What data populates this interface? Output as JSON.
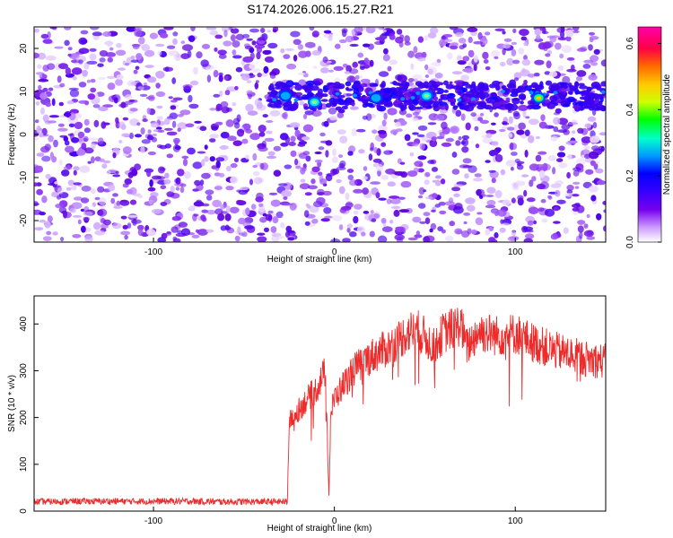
{
  "title": "S174.2026.006.15.27.R21",
  "chart_data": [
    {
      "type": "heatmap",
      "xlabel": "Height of straight line (km)",
      "ylabel": "Frequency (Hz)",
      "xlim": [
        -166,
        150
      ],
      "ylim": [
        -25,
        25
      ],
      "xticks": [
        -100,
        0,
        100
      ],
      "yticks": [
        -20,
        -10,
        0,
        10,
        20
      ],
      "xtick_labels": [
        "-100",
        "0",
        "100"
      ],
      "ytick_labels": [
        "-20",
        "-10",
        "0",
        "10",
        "20"
      ],
      "colorbar": {
        "label": "Normalized spectral amplitude",
        "range": [
          0.0,
          0.65
        ],
        "ticks": [
          0.0,
          0.2,
          0.4,
          0.6
        ],
        "tick_labels": [
          "0.0",
          "0.2",
          "0.4",
          "0.6"
        ],
        "colors": [
          "#ffffff",
          "#cc99ff",
          "#7700ee",
          "#3300ff",
          "#0000ff",
          "#0099ff",
          "#00ffcc",
          "#00ff00",
          "#ccff00",
          "#ffcc00",
          "#ff6600",
          "#ff0044",
          "#ff00aa"
        ]
      },
      "band": {
        "frequency_hz": 9,
        "x_start_km": -36,
        "x_end_km": 150
      },
      "peaks": [
        {
          "x": -11,
          "y": 7.5,
          "value": 0.33
        },
        {
          "x": 51,
          "y": 9,
          "value": 0.38
        },
        {
          "x": 113,
          "y": 8.5,
          "value": 0.48
        },
        {
          "x": 23,
          "y": 8.5,
          "value": 0.18
        },
        {
          "x": -27,
          "y": 9,
          "value": 0.15
        }
      ]
    },
    {
      "type": "line",
      "xlabel": "Height of straight line (km)",
      "ylabel": "SNR (10 * v/v)",
      "xlim": [
        -166,
        150
      ],
      "ylim": [
        0,
        460
      ],
      "xticks": [
        -100,
        0,
        100
      ],
      "yticks": [
        0,
        100,
        200,
        300,
        400
      ],
      "xtick_labels": [
        "-100",
        "0",
        "100"
      ],
      "ytick_labels": [
        "0",
        "100",
        "200",
        "300",
        "400"
      ],
      "color": "#ee2b2b",
      "series": [
        {
          "x": [
            -166,
            -140,
            -120,
            -100,
            -80,
            -60,
            -40,
            -26,
            -25,
            -20,
            -15,
            -10,
            -5,
            -3,
            -2,
            0,
            5,
            10,
            15,
            20,
            30,
            40,
            45,
            50,
            55,
            60,
            70,
            73,
            80,
            90,
            100,
            110,
            120,
            130,
            140,
            150
          ],
          "y": [
            20,
            21,
            21,
            21,
            21,
            20,
            20,
            20,
            190,
            215,
            240,
            260,
            300,
            30,
            210,
            240,
            270,
            300,
            315,
            330,
            350,
            380,
            390,
            372,
            350,
            380,
            400,
            350,
            385,
            375,
            380,
            360,
            345,
            335,
            325,
            320
          ]
        }
      ]
    }
  ]
}
